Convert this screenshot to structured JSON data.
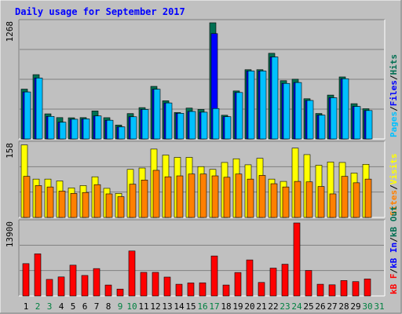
{
  "title": "Daily usage for September 2017",
  "colors": {
    "background": "#c0c0c0",
    "panel": "#c0c0c0",
    "title": "#0000ff",
    "hits": "#006f52",
    "files": "#0000ff",
    "pages": "#00c0ff",
    "visits": "#ffff00",
    "sites": "#ff8000",
    "kbin": "#0000ff",
    "kbout": "#006f52",
    "kbf": "#ff0000",
    "weekend_day": "#008040",
    "weekday": "#000000"
  },
  "chart_data": [
    {
      "type": "bar",
      "panel": "top",
      "max_label": "1268",
      "ylim": [
        0,
        1268
      ],
      "legend": [
        "Pages",
        "/",
        "Files",
        "/",
        "Hits"
      ],
      "categories": [
        "1",
        "2",
        "3",
        "4",
        "5",
        "6",
        "7",
        "8",
        "9",
        "10",
        "11",
        "12",
        "13",
        "14",
        "15",
        "16",
        "17",
        "18",
        "19",
        "20",
        "21",
        "22",
        "23",
        "24",
        "25",
        "26",
        "27",
        "28",
        "29",
        "30",
        "31"
      ],
      "series": [
        {
          "name": "Hits",
          "values": [
            544,
            702,
            274,
            233,
            231,
            233,
            306,
            232,
            152,
            277,
            342,
            574,
            417,
            289,
            337,
            322,
            1268,
            259,
            524,
            756,
            756,
            935,
            636,
            652,
            439,
            278,
            479,
            677,
            385,
            330,
            0
          ]
        },
        {
          "name": "Files",
          "values": [
            513,
            665,
            246,
            183,
            215,
            219,
            251,
            204,
            132,
            242,
            322,
            543,
            393,
            280,
            300,
            292,
            1150,
            243,
            507,
            742,
            742,
            895,
            606,
            616,
            420,
            260,
            450,
            657,
            355,
            310,
            0
          ]
        },
        {
          "name": "Pages",
          "values": [
            513,
            665,
            246,
            183,
            215,
            219,
            251,
            204,
            132,
            242,
            322,
            543,
            393,
            280,
            300,
            292,
            332,
            243,
            507,
            742,
            742,
            895,
            606,
            616,
            420,
            260,
            450,
            657,
            355,
            310,
            0
          ]
        }
      ]
    },
    {
      "type": "bar",
      "panel": "middle",
      "max_label": "158",
      "ylim": [
        0,
        158
      ],
      "legend": [
        "Sites",
        "/",
        "Visits"
      ],
      "categories": [
        "1",
        "2",
        "3",
        "4",
        "5",
        "6",
        "7",
        "8",
        "9",
        "10",
        "11",
        "12",
        "13",
        "14",
        "15",
        "16",
        "17",
        "18",
        "19",
        "20",
        "21",
        "22",
        "23",
        "24",
        "25",
        "26",
        "27",
        "28",
        "29",
        "30",
        "31"
      ],
      "series": [
        {
          "name": "Visits",
          "values": [
            157,
            83,
            83,
            79,
            64,
            69,
            88,
            63,
            52,
            104,
            107,
            148,
            135,
            130,
            130,
            110,
            104,
            119,
            127,
            114,
            128,
            83,
            78,
            150,
            136,
            113,
            120,
            119,
            96,
            115,
            0
          ]
        },
        {
          "name": "Sites",
          "values": [
            89,
            69,
            66,
            57,
            52,
            54,
            71,
            51,
            45,
            72,
            81,
            102,
            88,
            90,
            94,
            94,
            90,
            87,
            94,
            83,
            91,
            73,
            66,
            78,
            77,
            67,
            51,
            89,
            75,
            83,
            0
          ]
        }
      ]
    },
    {
      "type": "bar",
      "panel": "bottom",
      "max_label": "13900",
      "ylim": [
        0,
        13900
      ],
      "legend": [
        "kB F",
        "/",
        "kB In",
        "/",
        "kB Out"
      ],
      "categories": [
        "1",
        "2",
        "3",
        "4",
        "5",
        "6",
        "7",
        "8",
        "9",
        "10",
        "11",
        "12",
        "13",
        "14",
        "15",
        "16",
        "17",
        "18",
        "19",
        "20",
        "21",
        "22",
        "23",
        "24",
        "25",
        "26",
        "27",
        "28",
        "29",
        "30",
        "31"
      ],
      "series": [
        {
          "name": "kB F",
          "values": [
            6150,
            8020,
            3150,
            3620,
            5860,
            3900,
            5210,
            2080,
            1310,
            8560,
            4490,
            4490,
            3590,
            2230,
            2480,
            2500,
            7610,
            2080,
            4460,
            6860,
            2570,
            5300,
            6040,
            13900,
            4850,
            2230,
            2120,
            2930,
            2730,
            3240,
            0
          ]
        }
      ]
    }
  ],
  "x_axis": {
    "labels": [
      "1",
      "2",
      "3",
      "4",
      "5",
      "6",
      "7",
      "8",
      "9",
      "10",
      "11",
      "12",
      "13",
      "14",
      "15",
      "16",
      "17",
      "18",
      "19",
      "20",
      "21",
      "22",
      "23",
      "24",
      "25",
      "26",
      "27",
      "28",
      "29",
      "30",
      "31"
    ],
    "weekend_days": [
      "2",
      "3",
      "9",
      "10",
      "16",
      "17",
      "23",
      "24",
      "30",
      "31"
    ]
  }
}
